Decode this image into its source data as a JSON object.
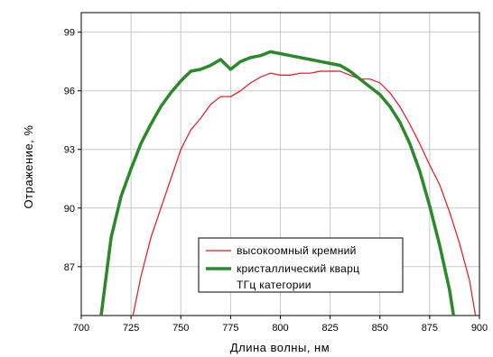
{
  "chart_data": {
    "type": "line",
    "xlabel": "Длина волны, нм",
    "ylabel": "Отражение, %",
    "xlim": [
      700,
      900
    ],
    "ylim": [
      84.5,
      100
    ],
    "xticks": [
      "700",
      "725",
      "750",
      "775",
      "800",
      "825",
      "850",
      "875",
      "900"
    ],
    "yticks": [
      "87",
      "90",
      "93",
      "96",
      "99"
    ],
    "grid": true,
    "legend_position": "bottom-center",
    "legend_entries": [
      "высокоомный кремний",
      "кристаллический кварц",
      "ТГц категории"
    ],
    "series": [
      {
        "name": "высокоомный кремний",
        "color": "#e8141c",
        "x": [
          726,
          730,
          735,
          740,
          745,
          750,
          755,
          760,
          765,
          770,
          775,
          780,
          785,
          790,
          795,
          800,
          805,
          810,
          815,
          820,
          825,
          830,
          835,
          840,
          845,
          850,
          855,
          860,
          865,
          870,
          875,
          880,
          885,
          890,
          895,
          898
        ],
        "values": [
          84.5,
          86.5,
          88.5,
          90.0,
          91.5,
          93.0,
          94.0,
          94.6,
          95.3,
          95.7,
          95.7,
          96.0,
          96.4,
          96.7,
          96.9,
          96.8,
          96.8,
          96.9,
          96.9,
          97.0,
          97.0,
          97.0,
          96.8,
          96.6,
          96.6,
          96.4,
          95.9,
          95.2,
          94.3,
          93.3,
          92.2,
          91.2,
          89.8,
          88.2,
          86.3,
          84.5
        ]
      },
      {
        "name": "кристаллический кварц",
        "color": "#2a8a2a",
        "x": [
          710,
          715,
          720,
          725,
          730,
          735,
          740,
          745,
          750,
          755,
          760,
          765,
          770,
          775,
          780,
          785,
          790,
          795,
          800,
          805,
          810,
          815,
          820,
          825,
          830,
          835,
          840,
          845,
          850,
          855,
          860,
          865,
          870,
          875,
          880,
          885,
          887
        ],
        "values": [
          84.5,
          88.5,
          90.6,
          92.0,
          93.3,
          94.3,
          95.2,
          95.9,
          96.5,
          97.0,
          97.1,
          97.3,
          97.6,
          97.1,
          97.5,
          97.7,
          97.8,
          98.0,
          97.9,
          97.8,
          97.7,
          97.6,
          97.5,
          97.4,
          97.3,
          97.0,
          96.6,
          96.2,
          95.8,
          95.2,
          94.4,
          93.3,
          91.9,
          90.1,
          88.1,
          85.8,
          84.5
        ]
      }
    ]
  }
}
